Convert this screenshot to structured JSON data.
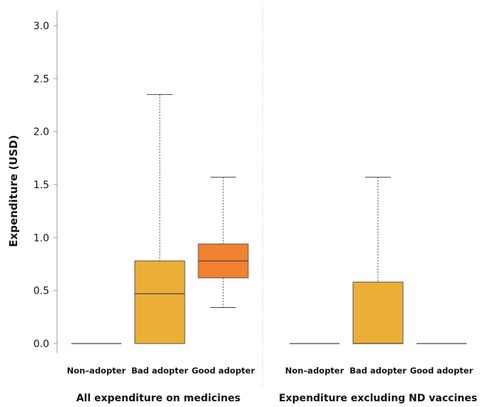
{
  "chart_data": {
    "type": "box",
    "ylabel": "Expenditure (USD)",
    "ylim": [
      0,
      3.0
    ],
    "yticks": [
      "0.0",
      "0.5",
      "1.0",
      "1.5",
      "2.0",
      "2.5",
      "3.0"
    ],
    "grid": false,
    "colors": {
      "box_default": "#EBAF37",
      "box_highlight": "#F28130",
      "outline": "#555555",
      "divider": "#bbbbbb"
    },
    "panels": [
      {
        "label": "All expenditure on medicines",
        "categories": [
          "Non–adopter",
          "Bad adopter",
          "Good adopter"
        ],
        "boxes": [
          {
            "category": "Non–adopter",
            "min": 0,
            "q1": 0,
            "median": 0,
            "q3": 0,
            "max": 0,
            "color": "box_default"
          },
          {
            "category": "Bad adopter",
            "min": 0,
            "q1": 0,
            "median": 0.47,
            "q3": 0.78,
            "max": 2.35,
            "color": "box_default"
          },
          {
            "category": "Good adopter",
            "min": 0.34,
            "q1": 0.62,
            "median": 0.78,
            "q3": 0.94,
            "max": 1.57,
            "color": "box_highlight"
          }
        ]
      },
      {
        "label": "Expenditure excluding ND vaccines",
        "categories": [
          "Non–adopter",
          "Bad adopter",
          "Good adopter"
        ],
        "boxes": [
          {
            "category": "Non–adopter",
            "min": 0,
            "q1": 0,
            "median": 0,
            "q3": 0,
            "max": 0,
            "color": "box_default"
          },
          {
            "category": "Bad adopter",
            "min": 0,
            "q1": 0,
            "median": 0,
            "q3": 0.58,
            "max": 1.57,
            "color": "box_default"
          },
          {
            "category": "Good adopter",
            "min": 0,
            "q1": 0,
            "median": 0,
            "q3": 0,
            "max": 0,
            "color": "box_default"
          }
        ]
      }
    ]
  }
}
